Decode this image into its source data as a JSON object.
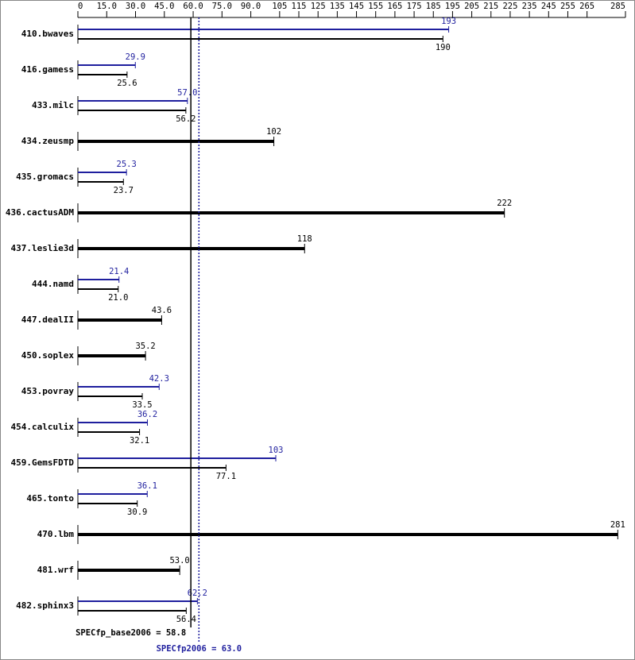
{
  "chart_data": {
    "type": "bar",
    "orientation": "horizontal",
    "categories": [
      "410.bwaves",
      "416.gamess",
      "433.milc",
      "434.zeusmp",
      "435.gromacs",
      "436.cactusADM",
      "437.leslie3d",
      "444.namd",
      "447.dealII",
      "450.soplex",
      "453.povray",
      "454.calculix",
      "459.GemsFDTD",
      "465.tonto",
      "470.lbm",
      "481.wrf",
      "482.sphinx3"
    ],
    "series": [
      {
        "color": "#1f1f9e",
        "values": [
          193,
          29.9,
          57.0,
          null,
          25.3,
          null,
          null,
          21.4,
          null,
          null,
          42.3,
          36.2,
          103,
          36.1,
          null,
          null,
          62.2
        ],
        "value_labels": [
          "193",
          "29.9",
          "57.0",
          null,
          "25.3",
          null,
          null,
          "21.4",
          null,
          null,
          "42.3",
          "36.2",
          "103",
          "36.1",
          null,
          null,
          "62.2"
        ]
      },
      {
        "color": "#000000",
        "values": [
          190,
          25.6,
          56.2,
          102,
          23.7,
          222,
          118,
          21.0,
          43.6,
          35.2,
          33.5,
          32.1,
          77.1,
          30.9,
          281,
          53.0,
          56.4
        ],
        "value_labels": [
          "190",
          "25.6",
          "56.2",
          "102",
          "23.7",
          "222",
          "118",
          "21.0",
          "43.6",
          "35.2",
          "33.5",
          "32.1",
          "77.1",
          "30.9",
          "281",
          "53.0",
          "56.4"
        ]
      }
    ],
    "xlim": [
      0,
      285
    ],
    "xticks": [
      0,
      {
        "value": 15,
        "label": "15.0"
      },
      {
        "value": 30,
        "label": "30.0"
      },
      {
        "value": 45,
        "label": "45.0"
      },
      {
        "value": 60,
        "label": "60.0"
      },
      {
        "value": 75,
        "label": "75.0"
      },
      {
        "value": 90,
        "label": "90.0"
      },
      105,
      115,
      125,
      135,
      145,
      155,
      165,
      175,
      185,
      195,
      205,
      215,
      225,
      235,
      245,
      255,
      265,
      285
    ],
    "reference_lines": [
      {
        "value": 58.8,
        "label": "SPECfp_base2006 = 58.8",
        "color": "#000000",
        "dashed": false
      },
      {
        "value": 63.0,
        "label": "SPECfp2006 = 63.0",
        "color": "#1f1f9e",
        "dashed": true
      }
    ]
  }
}
